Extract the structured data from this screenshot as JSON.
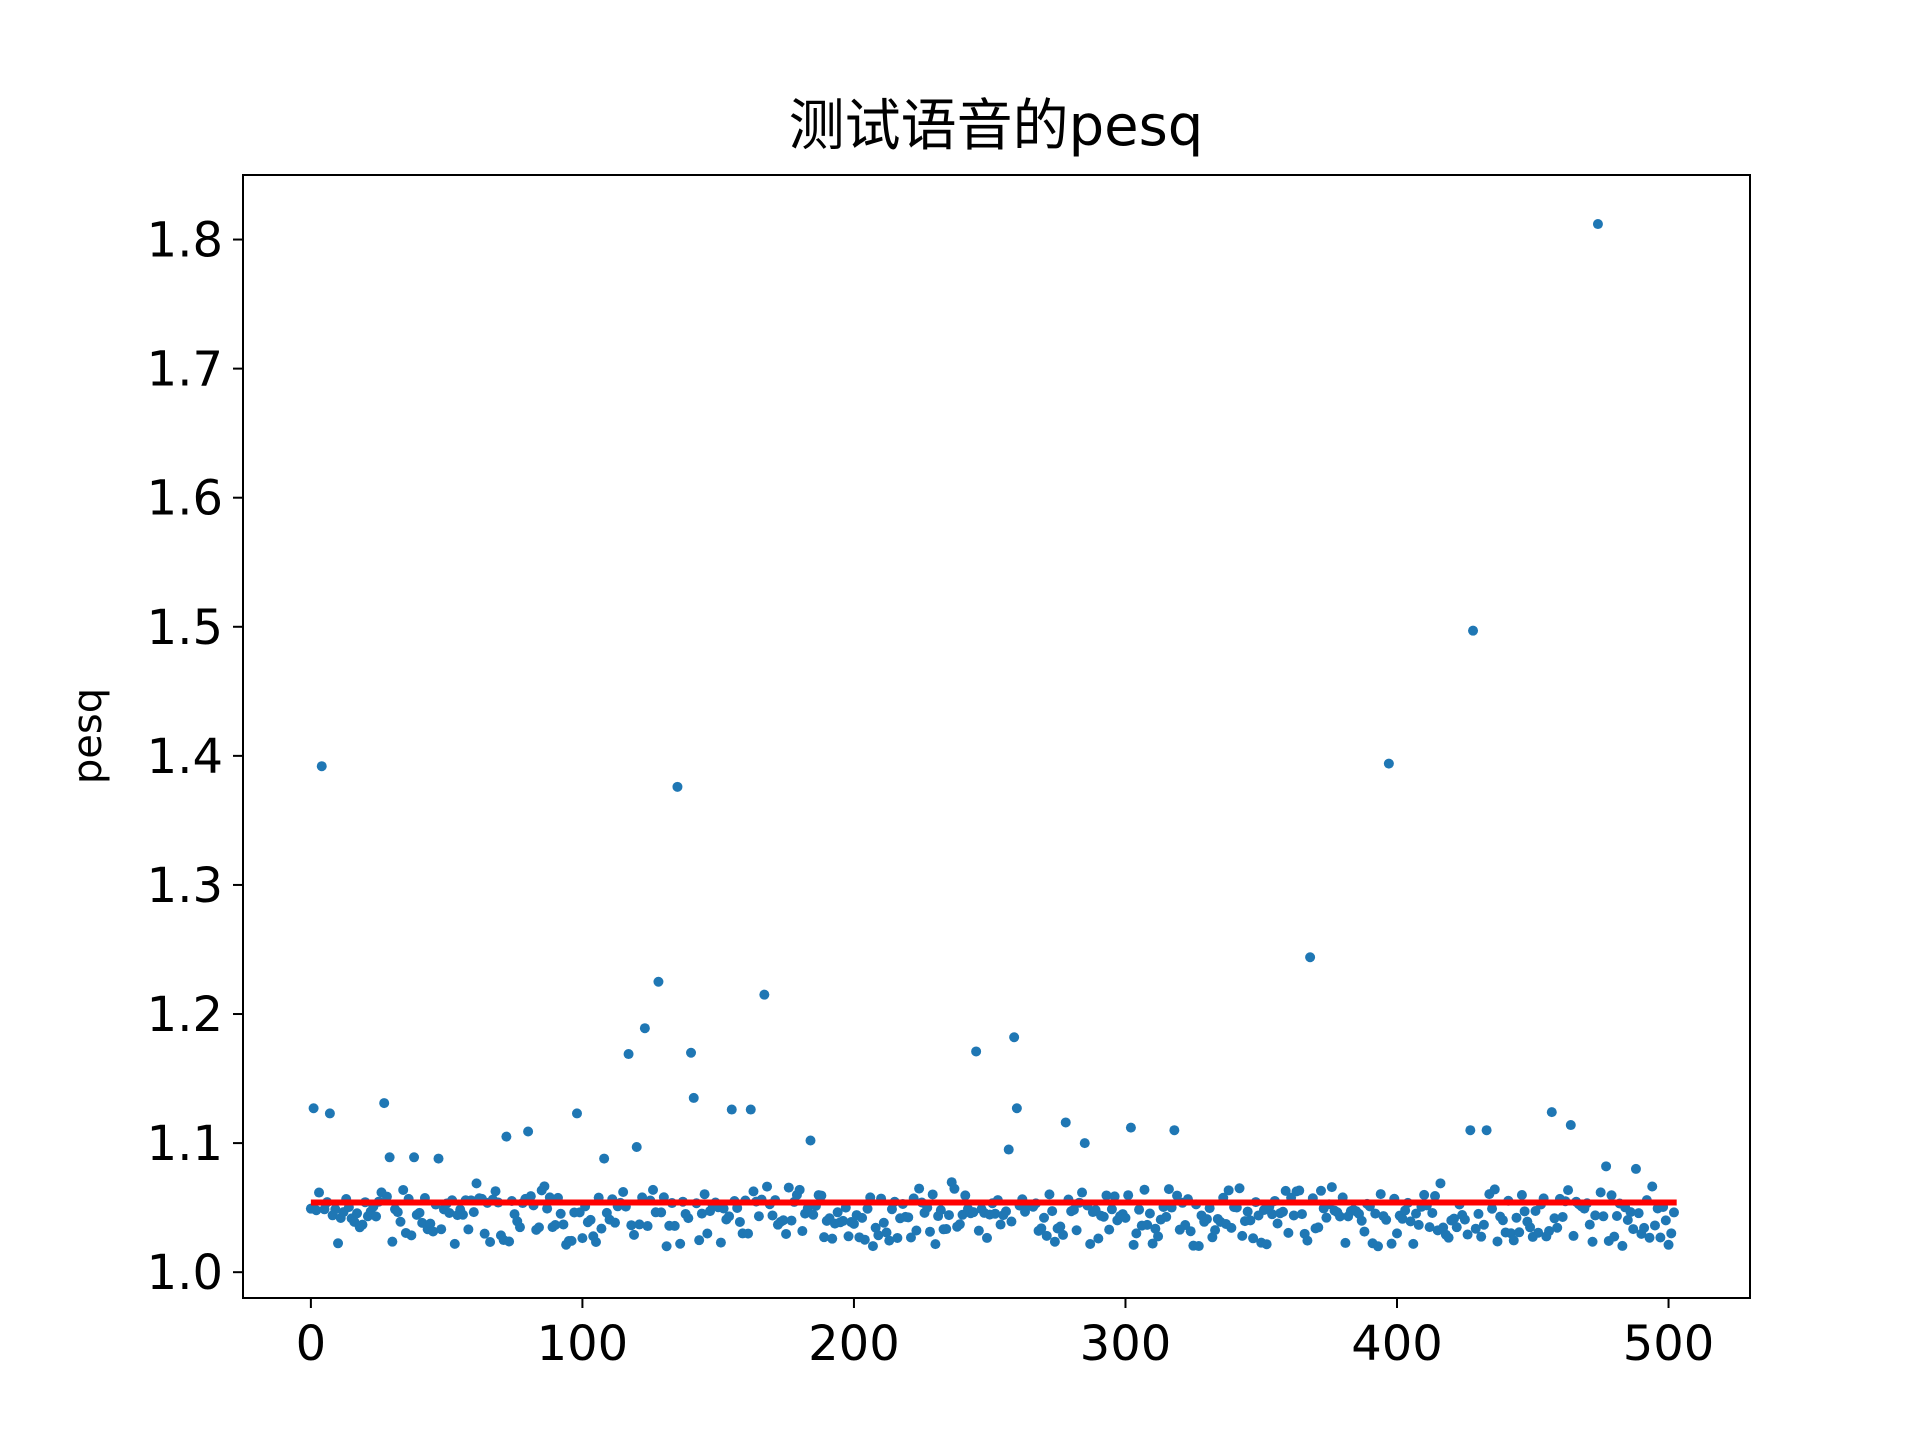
{
  "chart_data": {
    "type": "scatter",
    "title": "测试语音的pesq",
    "xlabel": "",
    "ylabel": "pesq",
    "xlim": [
      -25,
      530
    ],
    "ylim": [
      0.98,
      1.85
    ],
    "grid": false,
    "xticks": [
      0,
      100,
      200,
      300,
      400,
      500
    ],
    "xtick_labels": [
      "0",
      "100",
      "200",
      "300",
      "400",
      "500"
    ],
    "yticks": [
      1.0,
      1.1,
      1.2,
      1.3,
      1.4,
      1.5,
      1.6,
      1.7,
      1.8
    ],
    "ytick_labels": [
      "1.0",
      "1.1",
      "1.2",
      "1.3",
      "1.4",
      "1.5",
      "1.6",
      "1.7",
      "1.8"
    ],
    "colors": {
      "points": "#1f77b4",
      "mean_line": "#ff0000"
    },
    "mean_line": {
      "x": [
        0,
        503
      ],
      "y": 1.054
    },
    "outliers": [
      [
        1,
        1.127
      ],
      [
        4,
        1.392
      ],
      [
        7,
        1.123
      ],
      [
        27,
        1.131
      ],
      [
        29,
        1.089
      ],
      [
        38,
        1.089
      ],
      [
        47,
        1.088
      ],
      [
        72,
        1.105
      ],
      [
        80,
        1.109
      ],
      [
        98,
        1.123
      ],
      [
        108,
        1.088
      ],
      [
        117,
        1.169
      ],
      [
        120,
        1.097
      ],
      [
        123,
        1.189
      ],
      [
        128,
        1.225
      ],
      [
        135,
        1.376
      ],
      [
        140,
        1.17
      ],
      [
        141,
        1.135
      ],
      [
        155,
        1.126
      ],
      [
        162,
        1.126
      ],
      [
        167,
        1.215
      ],
      [
        184,
        1.102
      ],
      [
        245,
        1.171
      ],
      [
        257,
        1.095
      ],
      [
        259,
        1.182
      ],
      [
        260,
        1.127
      ],
      [
        278,
        1.116
      ],
      [
        285,
        1.1
      ],
      [
        302,
        1.112
      ],
      [
        318,
        1.11
      ],
      [
        368,
        1.244
      ],
      [
        397,
        1.394
      ],
      [
        427,
        1.11
      ],
      [
        428,
        1.497
      ],
      [
        433,
        1.11
      ],
      [
        457,
        1.124
      ],
      [
        464,
        1.114
      ],
      [
        474,
        1.812
      ],
      [
        477,
        1.082
      ],
      [
        488,
        1.08
      ]
    ],
    "bulk": {
      "count": 463,
      "x_range": [
        0,
        503
      ],
      "y_min": 1.02,
      "y_max": 1.075,
      "y_center": 1.043
    }
  }
}
